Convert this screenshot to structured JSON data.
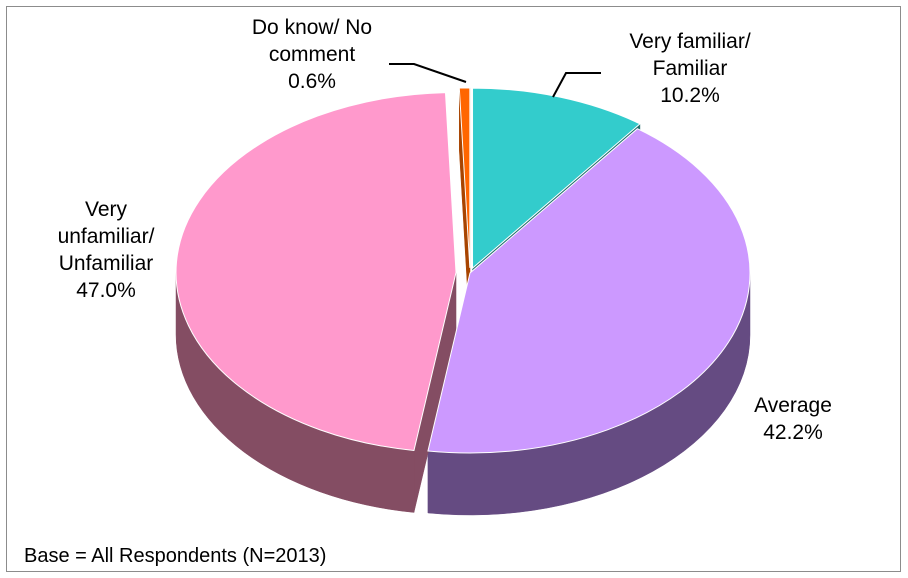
{
  "chart_data": {
    "type": "pie",
    "title": "",
    "three_d": true,
    "exploded": true,
    "legend": "none",
    "slices": [
      {
        "name": "Very familiar/ Familiar",
        "label_lines": [
          "Very familiar/",
          "Familiar"
        ],
        "value": 10.2,
        "value_label": "10.2%",
        "color": "#33CCCC",
        "side_color": "#1F6E6E"
      },
      {
        "name": "Average",
        "label_lines": [
          "Average"
        ],
        "value": 42.2,
        "value_label": "42.2%",
        "color": "#CC99FF",
        "side_color": "#654B82"
      },
      {
        "name": "Very unfamiliar/ Unfamiliar",
        "label_lines": [
          "Very",
          "unfamiliar/",
          "Unfamiliar"
        ],
        "value": 47.0,
        "value_label": "47.0%",
        "color": "#FF99CC",
        "side_color": "#844D63"
      },
      {
        "name": "Do know/ No comment",
        "label_lines": [
          "Do know/ No",
          "comment"
        ],
        "value": 0.6,
        "value_label": "0.6%",
        "color": "#FF6600",
        "side_color": "#A84400"
      }
    ],
    "footnote": "Base = All Respondents (N=2013)"
  }
}
